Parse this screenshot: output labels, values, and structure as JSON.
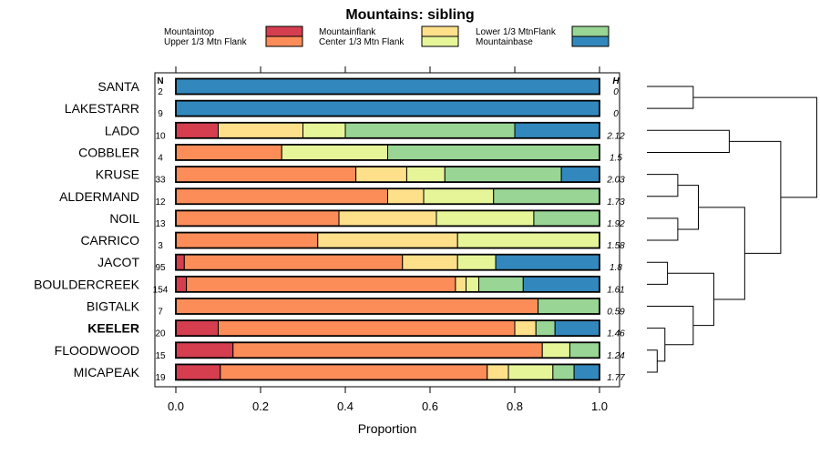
{
  "chart_data": {
    "type": "bar",
    "orientation": "horizontal",
    "stacked": true,
    "title": "Mountains: sibling",
    "xlabel": "Proportion",
    "xlim": [
      0,
      1
    ],
    "xticks": [
      "0.0",
      "0.2",
      "0.4",
      "0.6",
      "0.8",
      "1.0"
    ],
    "n_header": "N",
    "h_header": "H",
    "categories": [
      "SANTA",
      "LAKESTARR",
      "LADO",
      "COBBLER",
      "KRUSE",
      "ALDERMAND",
      "NOIL",
      "CARRICO",
      "JACOT",
      "BOULDERCREEK",
      "BIGTALK",
      "KEELER",
      "FLOODWOOD",
      "MICAPEAK"
    ],
    "highlight": "KEELER",
    "n": [
      "2",
      "9",
      "10",
      "4",
      "33",
      "12",
      "13",
      "3",
      "95",
      "154",
      "7",
      "20",
      "15",
      "19"
    ],
    "h": [
      "0",
      "0",
      "2.12",
      "1.5",
      "2.03",
      "1.73",
      "1.92",
      "1.58",
      "1.8",
      "1.61",
      "0.59",
      "1.46",
      "1.24",
      "1.77"
    ],
    "series": [
      {
        "name": "Mountaintop",
        "color": "#d53e4f",
        "values": [
          0,
          0,
          0.1,
          0,
          0,
          0,
          0,
          0,
          0.02,
          0.025,
          0,
          0.1,
          0.135,
          0.105
        ]
      },
      {
        "name": "Upper 1/3 Mtn Flank",
        "color": "#fc8d59",
        "values": [
          0,
          0,
          0,
          0.25,
          0.425,
          0.5,
          0.385,
          0.335,
          0.515,
          0.635,
          0.855,
          0.7,
          0.73,
          0.63
        ]
      },
      {
        "name": "Mountainflank",
        "color": "#fee08b",
        "values": [
          0,
          0,
          0.2,
          0,
          0.12,
          0.085,
          0.23,
          0.33,
          0.13,
          0.025,
          0,
          0.05,
          0,
          0.05
        ]
      },
      {
        "name": "Center 1/3 Mtn Flank",
        "color": "#e6f598",
        "values": [
          0,
          0,
          0.1,
          0.25,
          0.09,
          0.165,
          0.23,
          0.335,
          0.09,
          0.03,
          0,
          0,
          0.065,
          0.105
        ]
      },
      {
        "name": "Lower 1/3 MtnFlank",
        "color": "#99d594",
        "values": [
          0,
          0,
          0.4,
          0.5,
          0.275,
          0.25,
          0.155,
          0,
          0,
          0.105,
          0.145,
          0.045,
          0.07,
          0.05
        ]
      },
      {
        "name": "Mountainbase",
        "color": "#3288bd",
        "values": [
          1,
          1,
          0.2,
          0,
          0.09,
          0,
          0,
          0,
          0.245,
          0.18,
          0,
          0.105,
          0,
          0.06
        ]
      }
    ],
    "legend": {
      "placement": "top",
      "columns": 3
    },
    "dendrogram": {
      "order": [
        "SANTA",
        "LAKESTARR",
        "LADO",
        "COBBLER",
        "KRUSE",
        "ALDERMAND",
        "NOIL",
        "CARRICO",
        "JACOT",
        "BOULDERCREEK",
        "BIGTALK",
        "KEELER",
        "FLOODWOOD",
        "MICAPEAK"
      ],
      "merges": [
        {
          "a": "L0",
          "b": "L1",
          "h": 0.09
        },
        {
          "a": "L12",
          "b": "L13",
          "h": 0.02
        },
        {
          "a": "L11",
          "b": "m1",
          "h": 0.035
        },
        {
          "a": "L8",
          "b": "L9",
          "h": 0.04
        },
        {
          "a": "L4",
          "b": "L5",
          "h": 0.06
        },
        {
          "a": "L6",
          "b": "L7",
          "h": 0.06
        },
        {
          "a": "L10",
          "b": "m2",
          "h": 0.09
        },
        {
          "a": "m4",
          "b": "m5",
          "h": 0.1
        },
        {
          "a": "m3",
          "b": "m6",
          "h": 0.13
        },
        {
          "a": "L2",
          "b": "L3",
          "h": 0.16
        },
        {
          "a": "m7",
          "b": "m8",
          "h": 0.19
        },
        {
          "a": "m9",
          "b": "m10",
          "h": 0.26
        },
        {
          "a": "m0",
          "b": "m11",
          "h": 0.33
        }
      ]
    }
  }
}
